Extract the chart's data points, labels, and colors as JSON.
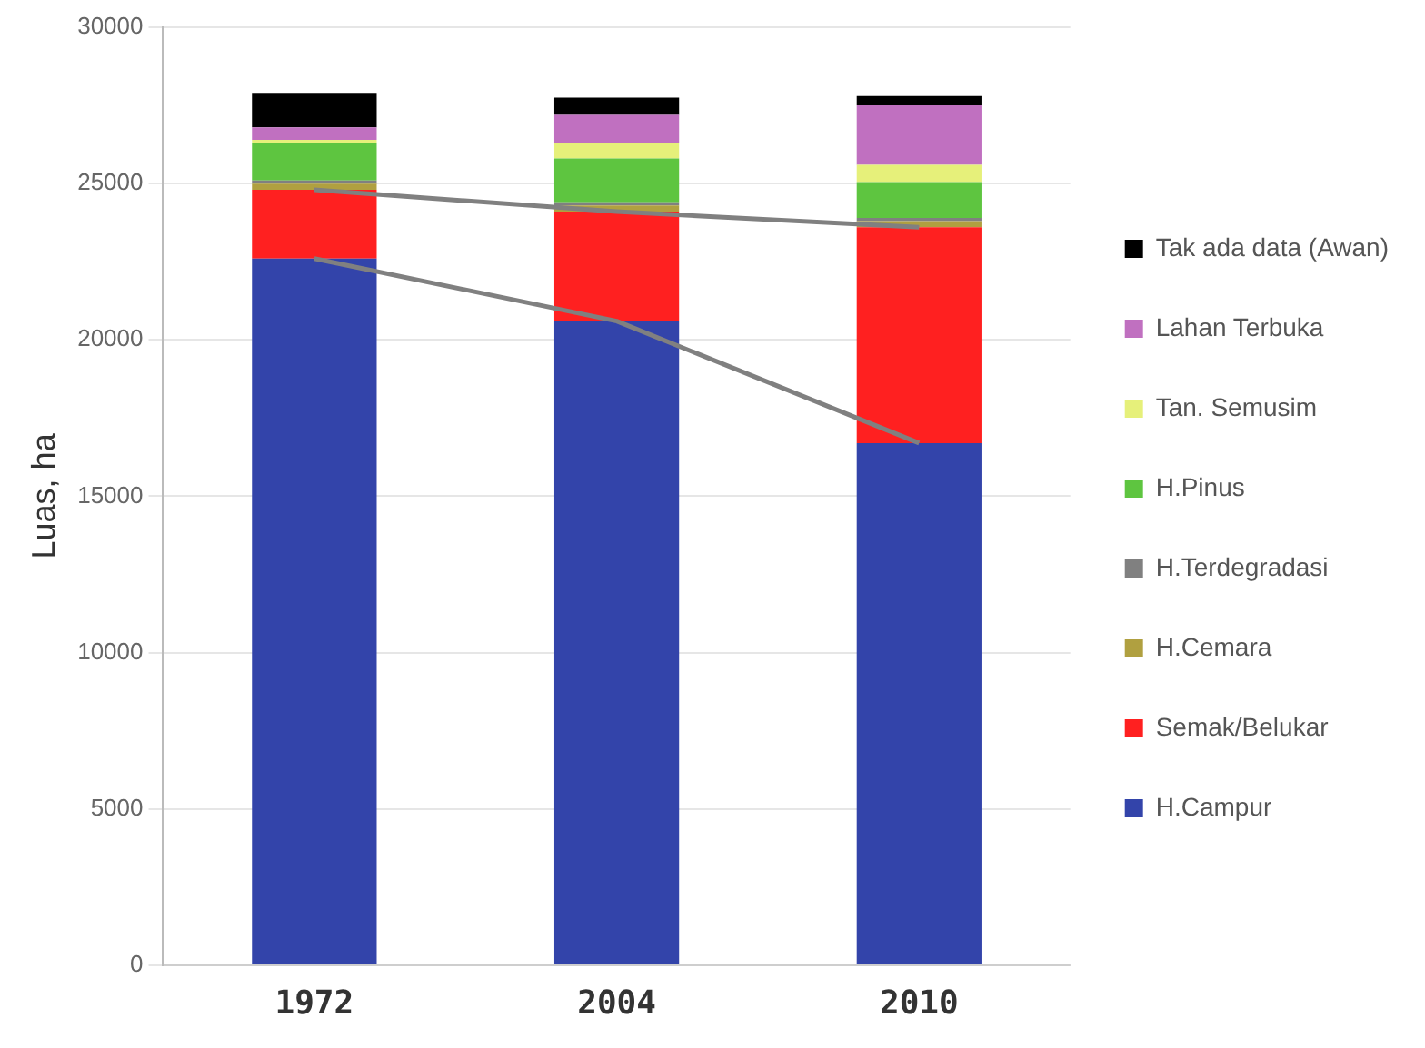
{
  "chart_data": {
    "type": "bar",
    "stacked": true,
    "ylabel": "Luas, ha",
    "categories": [
      "1972",
      "2004",
      "2010"
    ],
    "ylim": [
      0,
      30000
    ],
    "yticks": [
      0,
      5000,
      10000,
      15000,
      20000,
      25000,
      30000
    ],
    "grid": "y",
    "legend": "right",
    "series": [
      {
        "name": "H.Campur",
        "color": "#3344aa",
        "values": [
          22600,
          20600,
          16700
        ]
      },
      {
        "name": "Semak/Belukar",
        "color": "#ff2020",
        "values": [
          2200,
          3500,
          6900
        ]
      },
      {
        "name": "H.Cemara",
        "color": "#b0a040",
        "values": [
          200,
          200,
          200
        ]
      },
      {
        "name": "H.Terdegradasi",
        "color": "#808080",
        "values": [
          100,
          100,
          100
        ]
      },
      {
        "name": "H.Pinus",
        "color": "#5ec540",
        "values": [
          1200,
          1400,
          1150
        ]
      },
      {
        "name": "Tan. Semusim",
        "color": "#e6f07a",
        "values": [
          100,
          500,
          550
        ]
      },
      {
        "name": "Lahan Terbuka",
        "color": "#c070c0",
        "values": [
          400,
          900,
          1900
        ]
      },
      {
        "name": "Tak ada data (Awan)",
        "color": "#000000",
        "values": [
          1100,
          550,
          300
        ]
      },
      {
        "type": "line",
        "color": "#808080",
        "marker": "none",
        "values": [
          22600,
          20600,
          16700
        ]
      },
      {
        "type": "line",
        "color": "#808080",
        "marker": "none",
        "values": [
          24800,
          24100,
          23600
        ]
      }
    ]
  }
}
